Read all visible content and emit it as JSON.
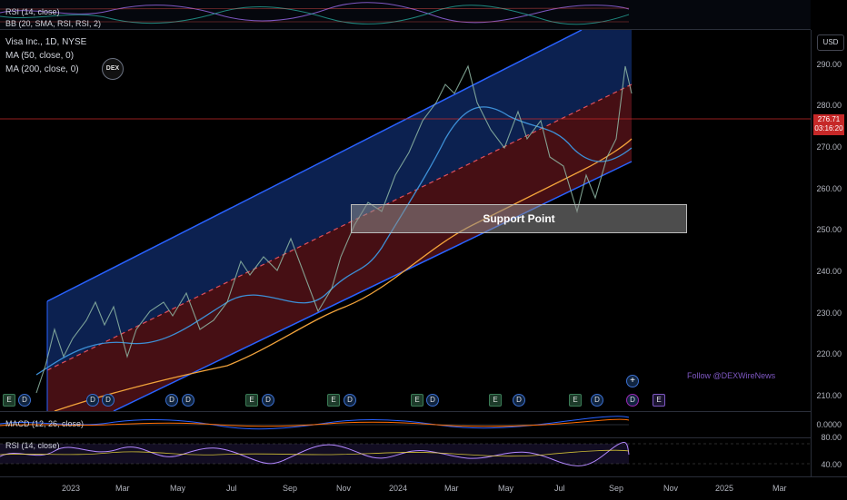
{
  "top_pane": {
    "rsi_label": "RSI (14, close)",
    "bb_label": "BB (20, SMA, RSI, RSI, 2)"
  },
  "legend": {
    "title": "Visa Inc., 1D, NYSE",
    "ma50": "MA (50, close, 0)",
    "ma200": "MA (200, close, 0)"
  },
  "logo_text": "DEX",
  "currency": "USD",
  "price_axis": [
    "290.00",
    "280.00",
    "270.00",
    "260.00",
    "250.00",
    "240.00",
    "230.00",
    "220.00",
    "210.00"
  ],
  "last_price": {
    "value": "276.71",
    "countdown": "03:16:20"
  },
  "annotation": {
    "support_label": "Support Point",
    "credit": "Follow @DEXWireNews"
  },
  "macd_pane": {
    "label": "MACD (12, 26, close)",
    "axis_value": "0.0000"
  },
  "rsi_pane": {
    "label": "RSI (14, close)",
    "axis": [
      "80.00",
      "40.00"
    ]
  },
  "time_axis": [
    "2023",
    "Mar",
    "May",
    "Jul",
    "Sep",
    "Nov",
    "2024",
    "Mar",
    "May",
    "Jul",
    "Sep",
    "Nov",
    "2025",
    "Mar"
  ],
  "event_badges": [
    "E",
    "D",
    "D",
    "D",
    "D",
    "D",
    "E",
    "D",
    "E",
    "D",
    "E",
    "D",
    "E",
    "D",
    "E",
    "D",
    "D",
    "E"
  ],
  "colors": {
    "upper_channel": "#0d2354",
    "lower_channel": "#4a1015",
    "channel_line": "#2962ff",
    "midline": "#e0505c",
    "ma50": "#3d8fd6",
    "ma200": "#f2a33b",
    "price_line": "#c62828",
    "last_price_tag": "#c62828"
  }
}
